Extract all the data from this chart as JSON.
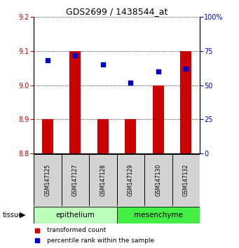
{
  "title": "GDS2699 / 1438544_at",
  "samples": [
    "GSM147125",
    "GSM147127",
    "GSM147128",
    "GSM147129",
    "GSM147130",
    "GSM147132"
  ],
  "bar_values": [
    8.9,
    9.1,
    8.9,
    8.9,
    9.0,
    9.1
  ],
  "bar_base": 8.8,
  "percentile_values": [
    68,
    72,
    65,
    52,
    60,
    62
  ],
  "ylim_left": [
    8.8,
    9.2
  ],
  "ylim_right": [
    0,
    100
  ],
  "yticks_left": [
    8.8,
    8.9,
    9.0,
    9.1,
    9.2
  ],
  "yticks_right": [
    0,
    25,
    50,
    75,
    100
  ],
  "bar_color": "#cc0000",
  "dot_color": "#0000cc",
  "group_labels": [
    "epithelium",
    "mesenchyme"
  ],
  "group_ranges": [
    [
      0,
      3
    ],
    [
      3,
      6
    ]
  ],
  "group_colors_light": "#bbffbb",
  "group_colors_dark": "#44ee44",
  "tissue_label": "tissue",
  "legend_bar_label": "transformed count",
  "legend_dot_label": "percentile rank within the sample",
  "left_tick_color": "#cc0000",
  "right_tick_color": "#0000cc",
  "sample_box_color": "#d3d3d3"
}
